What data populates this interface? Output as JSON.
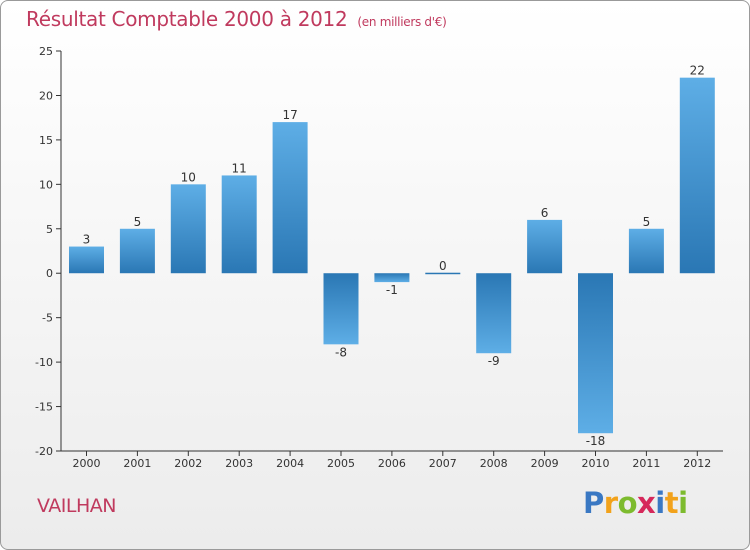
{
  "header": {
    "title": "Résultat Comptable 2000 à 2012",
    "unit": "(en milliers d'€)"
  },
  "footer": {
    "commune": "VAILHAN",
    "logo_letters": [
      "P",
      "r",
      "o",
      "x",
      "i",
      "t",
      "i"
    ],
    "logo_colors": [
      "#3a78c3",
      "#f2a21b",
      "#7dbb2e",
      "#d6285b",
      "#3a78c3",
      "#f2a21b",
      "#7dbb2e"
    ]
  },
  "colors": {
    "title": "#c03a5e",
    "bar_light": "#5eaee6",
    "bar_dark": "#2a77b4",
    "axis": "#333333"
  },
  "chart_data": {
    "type": "bar",
    "title": "Résultat Comptable 2000 à 2012",
    "categories": [
      "2000",
      "2001",
      "2002",
      "2003",
      "2004",
      "2005",
      "2006",
      "2007",
      "2008",
      "2009",
      "2010",
      "2011",
      "2012"
    ],
    "values": [
      3,
      5,
      10,
      11,
      17,
      -8,
      -1,
      0,
      -9,
      6,
      -18,
      5,
      22
    ],
    "data_labels": [
      "3",
      "5",
      "10",
      "11",
      "17",
      "-8",
      "-1",
      "0",
      "-9",
      "6",
      "-18",
      "5",
      "22"
    ],
    "yticks": [
      "25",
      "20",
      "15",
      "10",
      "5",
      "0",
      "-5",
      "-10",
      "-15",
      "-20"
    ],
    "ylim": [
      -20,
      25
    ],
    "grid": false,
    "legend": "none"
  }
}
